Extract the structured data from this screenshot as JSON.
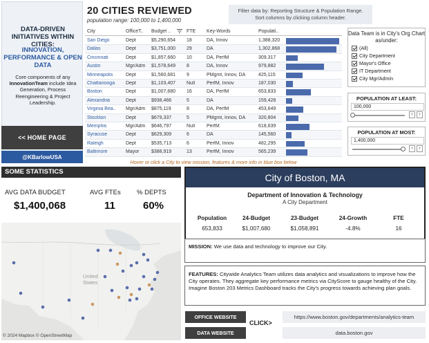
{
  "sidebar": {
    "heading": "DATA-DRIVEN INITIATIVES WITHIN CITIES:",
    "accent": "INNOVATION, PERFORMANCE & OPEN DATA",
    "desc_pre": "Core components of any ",
    "desc_bold": "InnovationTeam",
    "desc_post": " include Idea Generation, Process Reengineering & Project Leadership.",
    "home_button": "<< HOME PAGE",
    "handle": "@KBarlowUSA"
  },
  "header": {
    "title": "20 CITIES REVIEWED",
    "subtitle": "population range: 100,000 to 1,400,000",
    "filter_note": "Filter data by: Reporting Structure & Population Range. Sort columns by clicking column header."
  },
  "table": {
    "columns": [
      "City",
      "OfficeT..",
      "Budget ..",
      "FTE",
      "Key-Words",
      "Populati.."
    ],
    "rows": [
      {
        "city": "San Diego",
        "office": "Dept",
        "budget": "$5,290,654",
        "fte": "18",
        "keywords": "DA, Innov",
        "population": "1,388,320",
        "pop": 1388320
      },
      {
        "city": "Dallas",
        "office": "Dept",
        "budget": "$3,751,000",
        "fte": "29",
        "keywords": "DA",
        "population": "1,302,868",
        "pop": 1302868
      },
      {
        "city": "Cincinnati",
        "office": "Dept",
        "budget": "$1,857,660",
        "fte": "10",
        "keywords": "DA, PerfM",
        "population": "309,317",
        "pop": 309317
      },
      {
        "city": "Austin",
        "office": "Mgr/Adm",
        "budget": "$1,578,649",
        "fte": "8",
        "keywords": "DA, Innov",
        "population": "979,882",
        "pop": 979882
      },
      {
        "city": "Minneapolis",
        "office": "Dept",
        "budget": "$1,560,681",
        "fte": "9",
        "keywords": "PMgmt, Innov, DA",
        "population": "425,115",
        "pop": 425115
      },
      {
        "city": "Chattanooga",
        "office": "Dept",
        "budget": "$1,103,407",
        "fte": "Null",
        "keywords": "PerfM, Innov",
        "population": "187,030",
        "pop": 187030
      },
      {
        "city": "Boston",
        "office": "Dept",
        "budget": "$1,007,680",
        "fte": "16",
        "keywords": "DA, PerfM",
        "population": "653,833",
        "pop": 653833
      },
      {
        "city": "Alexandria",
        "office": "Dept",
        "budget": "$938,466",
        "fte": "5",
        "keywords": "DA",
        "population": "159,428",
        "pop": 159428
      },
      {
        "city": "Virginia Bea..",
        "office": "Mgr/Adm",
        "budget": "$875,119",
        "fte": "8",
        "keywords": "DA, PerfM",
        "population": "453,649",
        "pop": 453649
      },
      {
        "city": "Stockton",
        "office": "Dept",
        "budget": "$679,337",
        "fte": "5",
        "keywords": "PMgmt, Innov, DA",
        "population": "320,804",
        "pop": 320804
      },
      {
        "city": "Memphis",
        "office": "Mgr/Adm",
        "budget": "$646,797",
        "fte": "Null",
        "keywords": "PerfM",
        "population": "618,639",
        "pop": 618639
      },
      {
        "city": "Syracuse",
        "office": "Dept",
        "budget": "$629,309",
        "fte": "6",
        "keywords": "DA",
        "population": "145,560",
        "pop": 145560
      },
      {
        "city": "Raleigh",
        "office": "Dept",
        "budget": "$535,713",
        "fte": "6",
        "keywords": "PerfM, Innov",
        "population": "482,295",
        "pop": 482295
      },
      {
        "city": "Baltimore",
        "office": "Mayor",
        "budget": "$388,919",
        "fte": "13",
        "keywords": "PerfM, Innov",
        "population": "565,239",
        "pop": 565239
      }
    ],
    "bar_color": "#4a6aac",
    "hover_note": "Hover or click a City to view mission, features & more info in blue box below"
  },
  "dept_filter": {
    "title": "Data Team is in City's Org Chart as/under:",
    "options": [
      "(All)",
      "City Department",
      "Mayor's Office",
      "IT Department",
      "City Mgr/Admin"
    ]
  },
  "pop_min": {
    "title": "POPULATION AT LEAST:",
    "value": "100,000",
    "level": 0
  },
  "pop_max": {
    "title": "POPULATION AT MOST:",
    "value": "1,400,000",
    "level": 1
  },
  "stats": {
    "heading": "SOME STATISTICS",
    "avg_budget_label": "AVG DATA BUDGET",
    "avg_budget_value": "$1,400,068",
    "avg_fte_label": "AVG FTEs",
    "avg_fte_value": "11",
    "pct_depts_label": "% DEPTS",
    "pct_depts_value": "60%"
  },
  "map": {
    "country_label": "United States",
    "attribution": "© 2024 Mapbox © OpenStreetMap",
    "dot_blue": "#5b6fa8",
    "dot_orange": "#c79a66"
  },
  "detail": {
    "title": "City of Boston, MA",
    "dept_name": "Department of Innovation & Technology",
    "dept_type": "A City Department",
    "metric_labels": [
      "Population",
      "24-Budget",
      "23-Budget",
      "24-Growth",
      "FTE"
    ],
    "metric_values": [
      "653,833",
      "$1,007,680",
      "$1,058,891",
      "-4.8%",
      "16"
    ],
    "mission_label": "MISSION:",
    "mission_text": " We use data and technology to improve our City.",
    "features_label": "FEATURES:",
    "features_text": " Citywide Analytics Team utilizes data analytics and visualizations to improve how the City operates. They aggregate key performance metrics via CityScore to gauge healthy of the City. Imagine Boston 203 Metrics Dashboard tracks the City's progress towards achieving plan goals.",
    "header_color": "#2c3e5e"
  },
  "links": {
    "office_button": "OFFICE WEBSITE",
    "data_button": "DATA WEBSITE",
    "click_label": "CLICK>",
    "office_url": "https://www.boston.gov/departments/analytics-team",
    "data_url": "data.boston.gov"
  }
}
